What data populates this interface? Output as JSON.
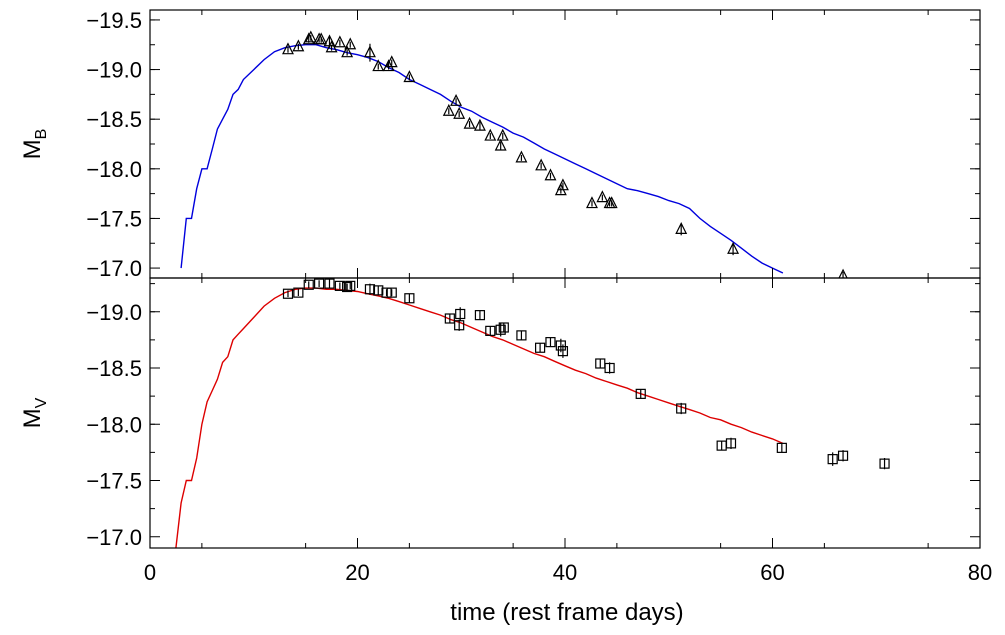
{
  "chart_data": [
    {
      "type": "scatter",
      "panel": "top",
      "ylabel": "M",
      "ylabel_sub": "B",
      "xlabel": "",
      "xlim": [
        0,
        80
      ],
      "ylim": [
        -16.9,
        -19.6
      ],
      "y_inverted": true,
      "x_ticks": [
        0,
        20,
        40,
        60,
        80
      ],
      "x_tick_labels_shown": false,
      "y_ticks": [
        -17.0,
        -17.5,
        -18.0,
        -18.5,
        -19.0,
        -19.5
      ],
      "y_tick_labels": [
        "−17.0",
        "−17.5",
        "−18.0",
        "−18.5",
        "−19.0",
        "−19.5"
      ],
      "marker": "triangle",
      "model_color": "#0000dd",
      "model": {
        "x": [
          3,
          3.5,
          4,
          4.5,
          5,
          5.5,
          6,
          6.5,
          7,
          7.5,
          8,
          8.5,
          9,
          10,
          11,
          12,
          13,
          14,
          15,
          16,
          17,
          18,
          19,
          20,
          21,
          22,
          23,
          24,
          25,
          26,
          27,
          28,
          29,
          30,
          31,
          32,
          33,
          34,
          35,
          36,
          37,
          38,
          39,
          40,
          41,
          42,
          43,
          44,
          45,
          46,
          47,
          48,
          49,
          50,
          51,
          52,
          53,
          54,
          55,
          56,
          57,
          58,
          59,
          60,
          61
        ],
        "y": [
          -17.0,
          -17.5,
          -17.5,
          -17.8,
          -18.0,
          -18.0,
          -18.2,
          -18.4,
          -18.5,
          -18.6,
          -18.75,
          -18.8,
          -18.9,
          -19.0,
          -19.1,
          -19.18,
          -19.22,
          -19.24,
          -19.25,
          -19.25,
          -19.22,
          -19.2,
          -19.17,
          -19.15,
          -19.12,
          -19.08,
          -19.02,
          -18.97,
          -18.9,
          -18.85,
          -18.8,
          -18.75,
          -18.68,
          -18.62,
          -18.58,
          -18.52,
          -18.47,
          -18.42,
          -18.36,
          -18.32,
          -18.26,
          -18.2,
          -18.15,
          -18.1,
          -18.05,
          -18.0,
          -17.95,
          -17.9,
          -17.85,
          -17.8,
          -17.78,
          -17.75,
          -17.72,
          -17.68,
          -17.65,
          -17.6,
          -17.5,
          -17.42,
          -17.35,
          -17.28,
          -17.2,
          -17.12,
          -17.05,
          -17.0,
          -16.95
        ]
      },
      "points": {
        "x": [
          13.3,
          14.3,
          15.3,
          15.5,
          16.3,
          16.5,
          17.3,
          17.5,
          18.3,
          19.0,
          19.3,
          21.2,
          22.0,
          23.0,
          23.3,
          25.0,
          28.8,
          29.5,
          29.8,
          30.8,
          31.8,
          32.8,
          33.8,
          34.0,
          35.8,
          37.7,
          38.6,
          39.6,
          39.8,
          42.6,
          43.6,
          44.3,
          44.5,
          51.2,
          56.2,
          66.8
        ],
        "y": [
          -19.2,
          -19.23,
          -19.3,
          -19.32,
          -19.3,
          -19.3,
          -19.28,
          -19.22,
          -19.27,
          -19.17,
          -19.25,
          -19.17,
          -19.03,
          -19.03,
          -19.07,
          -18.92,
          -18.58,
          -18.68,
          -18.55,
          -18.45,
          -18.43,
          -18.33,
          -18.23,
          -18.33,
          -18.11,
          -18.03,
          -17.93,
          -17.78,
          -17.83,
          -17.65,
          -17.71,
          -17.65,
          -17.65,
          -17.39,
          -17.19,
          -16.92
        ],
        "yerr": [
          0.03,
          0.03,
          0.03,
          0.03,
          0.03,
          0.03,
          0.06,
          0.03,
          0.03,
          0.03,
          0.03,
          0.09,
          0.03,
          0.03,
          0.03,
          0.03,
          0.03,
          0.03,
          0.03,
          0.03,
          0.04,
          0.03,
          0.04,
          0.03,
          0.03,
          0.03,
          0.03,
          0.03,
          0.03,
          0.03,
          0.03,
          0.03,
          0.03,
          0.06,
          0.06,
          0.04
        ]
      }
    },
    {
      "type": "scatter",
      "panel": "bottom",
      "ylabel": "M",
      "ylabel_sub": "V",
      "xlabel": "time (rest frame days)",
      "xlim": [
        0,
        80
      ],
      "ylim": [
        -16.9,
        -19.3
      ],
      "y_inverted": true,
      "x_ticks": [
        0,
        20,
        40,
        60,
        80
      ],
      "x_tick_labels": [
        "0",
        "20",
        "40",
        "60",
        "80"
      ],
      "y_ticks": [
        -17.0,
        -17.5,
        -18.0,
        -18.5,
        -19.0
      ],
      "y_tick_labels": [
        "−17.0",
        "−17.5",
        "−18.0",
        "−18.5",
        "−19.0"
      ],
      "marker": "square",
      "model_color": "#dd0000",
      "model": {
        "x": [
          2.5,
          3,
          3.5,
          4,
          4.5,
          5,
          5.5,
          6,
          6.5,
          7,
          7.5,
          8,
          8.5,
          9,
          10,
          11,
          12,
          13,
          14,
          15,
          16,
          17,
          18,
          19,
          20,
          21,
          22,
          23,
          24,
          25,
          26,
          27,
          28,
          29,
          30,
          31,
          32,
          33,
          34,
          35,
          36,
          37,
          38,
          39,
          40,
          41,
          42,
          43,
          44,
          45,
          46,
          47,
          48,
          49,
          50,
          51,
          52,
          53,
          54,
          55,
          56,
          57,
          58,
          59,
          60,
          61
        ],
        "y": [
          -16.9,
          -17.3,
          -17.5,
          -17.5,
          -17.7,
          -18.0,
          -18.2,
          -18.3,
          -18.4,
          -18.55,
          -18.6,
          -18.75,
          -18.8,
          -18.85,
          -18.95,
          -19.05,
          -19.12,
          -19.17,
          -19.2,
          -19.21,
          -19.21,
          -19.2,
          -19.2,
          -19.19,
          -19.18,
          -19.16,
          -19.14,
          -19.12,
          -19.09,
          -19.06,
          -19.03,
          -19.0,
          -18.97,
          -18.93,
          -18.9,
          -18.86,
          -18.82,
          -18.78,
          -18.75,
          -18.71,
          -18.67,
          -18.63,
          -18.6,
          -18.56,
          -18.52,
          -18.48,
          -18.45,
          -18.41,
          -18.38,
          -18.35,
          -18.32,
          -18.28,
          -18.25,
          -18.22,
          -18.19,
          -18.16,
          -18.13,
          -18.1,
          -18.06,
          -18.04,
          -18.0,
          -17.97,
          -17.93,
          -17.9,
          -17.87,
          -17.83
        ]
      },
      "points": {
        "x": [
          13.3,
          14.3,
          15.3,
          16.3,
          17.3,
          18.3,
          19.0,
          19.3,
          21.2,
          22.0,
          22.8,
          23.3,
          25.0,
          28.9,
          29.8,
          29.9,
          31.8,
          32.8,
          33.8,
          34.1,
          35.8,
          37.6,
          38.6,
          39.6,
          39.8,
          43.4,
          44.3,
          47.3,
          51.2,
          55.1,
          56.0,
          60.9,
          65.8,
          66.8,
          70.8
        ],
        "y": [
          -19.16,
          -19.17,
          -19.24,
          -19.25,
          -19.25,
          -19.23,
          -19.22,
          -19.23,
          -19.2,
          -19.19,
          -19.17,
          -19.17,
          -19.12,
          -18.94,
          -18.88,
          -18.98,
          -18.97,
          -18.83,
          -18.84,
          -18.86,
          -18.79,
          -18.68,
          -18.73,
          -18.7,
          -18.65,
          -18.54,
          -18.5,
          -18.27,
          -18.14,
          -17.81,
          -17.83,
          -17.79,
          -17.69,
          -17.72,
          -17.65
        ],
        "yerr": [
          0.03,
          0.03,
          0.03,
          0.03,
          0.04,
          0.03,
          0.03,
          0.03,
          0.05,
          0.04,
          0.03,
          0.03,
          0.04,
          0.04,
          0.05,
          0.06,
          0.04,
          0.04,
          0.06,
          0.04,
          0.04,
          0.04,
          0.04,
          0.06,
          0.06,
          0.04,
          0.05,
          0.04,
          0.05,
          0.04,
          0.05,
          0.04,
          0.06,
          0.05,
          0.05
        ]
      }
    }
  ]
}
